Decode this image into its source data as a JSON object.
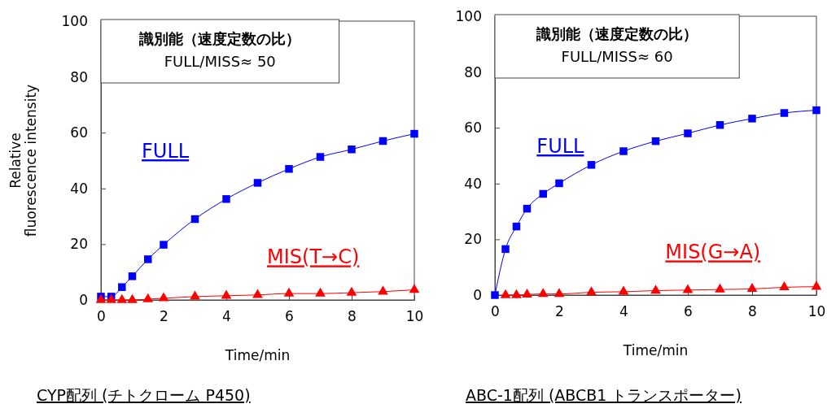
{
  "chart_data": [
    {
      "type": "line",
      "title": "CYP配列 (チトクローム P450)",
      "xlabel": "Time/min",
      "ylabel": "Relative fluorescence intensity",
      "annotations": [
        "識別能（速度定数の比）",
        "FULL/MISS≈ 50"
      ],
      "xlim": [
        0,
        10
      ],
      "xticks": [
        0,
        2,
        4,
        6,
        8,
        10
      ],
      "ylim": [
        0,
        100
      ],
      "yticks": [
        0,
        20,
        40,
        60,
        80,
        100
      ],
      "legend": false,
      "x": [
        0,
        0.33,
        0.67,
        1,
        1.5,
        2,
        3,
        4,
        5,
        6,
        7,
        8,
        9,
        10
      ],
      "series": [
        {
          "name": "FULL",
          "color": "#0000ff",
          "marker": "square",
          "values": [
            1.2,
            1.2,
            4.6,
            8.5,
            14.6,
            19.8,
            29,
            36.2,
            42,
            47,
            51.3,
            54,
            57,
            59.6
          ]
        },
        {
          "name": "MIS(T→C)",
          "color": "#ff0000",
          "marker": "triangle",
          "values": [
            0,
            0,
            0,
            0,
            0.3,
            0.6,
            1.2,
            1.5,
            1.8,
            2.3,
            2.3,
            2.6,
            3,
            3.6
          ]
        }
      ]
    },
    {
      "type": "line",
      "title": "ABC-1配列 (ABCB1 トランスポーター)",
      "xlabel": "Time/min",
      "annotations": [
        "識別能（速度定数の比）",
        "FULL/MISS≈ 60"
      ],
      "xlim": [
        0,
        10
      ],
      "xticks": [
        0,
        2,
        4,
        6,
        8,
        10
      ],
      "ylim": [
        0,
        100
      ],
      "yticks": [
        0,
        20,
        40,
        60,
        80,
        100
      ],
      "legend": false,
      "x": [
        0,
        0.33,
        0.67,
        1,
        1.5,
        2,
        3,
        4,
        5,
        6,
        7,
        8,
        9,
        10
      ],
      "series": [
        {
          "name": "FULL",
          "color": "#0000ff",
          "marker": "square",
          "values": [
            0,
            16.5,
            24.6,
            31,
            36.3,
            40.1,
            46.7,
            51.6,
            55.2,
            58,
            61,
            63.3,
            65.3,
            66.3
          ]
        },
        {
          "name": "MIS(G→A)",
          "color": "#ff0000",
          "marker": "triangle",
          "values": [
            null,
            0,
            0,
            0.2,
            0.4,
            0.4,
            1,
            1.2,
            1.6,
            1.8,
            2,
            2.2,
            2.8,
            3
          ]
        }
      ]
    }
  ]
}
